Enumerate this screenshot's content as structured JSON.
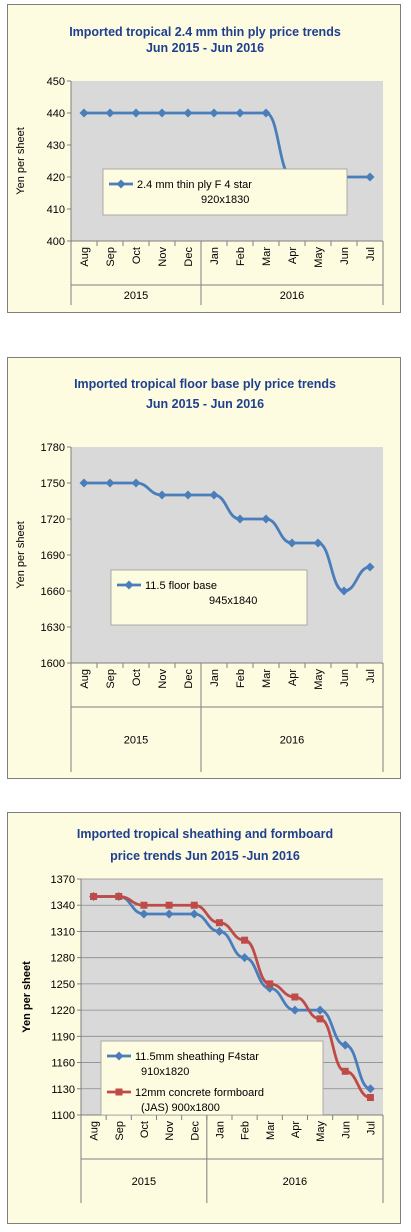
{
  "chart_data": [
    {
      "type": "line",
      "title": [
        "Imported tropical 2.4 mm thin ply price trends",
        "Jun 2015 - Jun 2016"
      ],
      "ylabel": "Yen per sheet",
      "ylim": [
        400,
        450
      ],
      "yticks": [
        400,
        410,
        420,
        430,
        440,
        450
      ],
      "categories": [
        "Aug",
        "Sep",
        "Oct",
        "Nov",
        "Dec",
        "Jan",
        "Feb",
        "Mar",
        "Apr",
        "May",
        "Jun",
        "Jul"
      ],
      "years": [
        {
          "label": "2015",
          "count": 5
        },
        {
          "label": "2016",
          "count": 7
        }
      ],
      "grid": false,
      "legend_placement": "inside-center",
      "series": [
        {
          "name": [
            "2.4 mm thin ply F 4 star",
            "920x1830"
          ],
          "color": "#4a7ebb",
          "marker": "diamond",
          "values": [
            440,
            440,
            440,
            440,
            440,
            440,
            440,
            440,
            420,
            420,
            420,
            420
          ]
        }
      ]
    },
    {
      "type": "line",
      "title": [
        "Imported tropical floor base ply price trends",
        "Jun 2015 - Jun 2016"
      ],
      "ylabel": "Yen per sheet",
      "ylim": [
        1600,
        1780
      ],
      "yticks": [
        1600,
        1630,
        1660,
        1690,
        1720,
        1750,
        1780
      ],
      "categories": [
        "Aug",
        "Sep",
        "Oct",
        "Nov",
        "Dec",
        "Jan",
        "Feb",
        "Mar",
        "Apr",
        "May",
        "Jun",
        "Jul"
      ],
      "years": [
        {
          "label": "2015",
          "count": 5
        },
        {
          "label": "2016",
          "count": 7
        }
      ],
      "grid": false,
      "legend_placement": "inside-center",
      "series": [
        {
          "name": [
            "11.5 floor base",
            "945x1840"
          ],
          "color": "#4a7ebb",
          "marker": "diamond",
          "values": [
            1750,
            1750,
            1750,
            1740,
            1740,
            1740,
            1720,
            1720,
            1700,
            1700,
            1660,
            1680
          ]
        }
      ]
    },
    {
      "type": "line",
      "title": [
        "Imported tropical sheathing and formboard",
        "price trends Jun 2015 -Jun 2016"
      ],
      "ylabel": "Yen per sheet",
      "ylim": [
        1100,
        1370
      ],
      "yticks": [
        1100,
        1130,
        1160,
        1190,
        1220,
        1250,
        1280,
        1310,
        1340,
        1370
      ],
      "categories": [
        "Aug",
        "Sep",
        "Oct",
        "Nov",
        "Dec",
        "Jan",
        "Feb",
        "Mar",
        "Apr",
        "May",
        "Jun",
        "Jul"
      ],
      "years": [
        {
          "label": "2015",
          "count": 5
        },
        {
          "label": "2016",
          "count": 7
        }
      ],
      "grid": true,
      "legend_placement": "inside-bottom-left",
      "series": [
        {
          "name": [
            "11.5mm sheathing F4star",
            "910x1820"
          ],
          "color": "#4a7ebb",
          "marker": "diamond",
          "values": [
            1350,
            1350,
            1330,
            1330,
            1330,
            1310,
            1280,
            1245,
            1220,
            1220,
            1180,
            1130
          ]
        },
        {
          "name": [
            "12mm concrete formboard",
            "(JAS) 900x1800"
          ],
          "color": "#be4b48",
          "marker": "square",
          "values": [
            1350,
            1350,
            1340,
            1340,
            1340,
            1320,
            1300,
            1250,
            1235,
            1210,
            1150,
            1120
          ]
        }
      ]
    }
  ]
}
